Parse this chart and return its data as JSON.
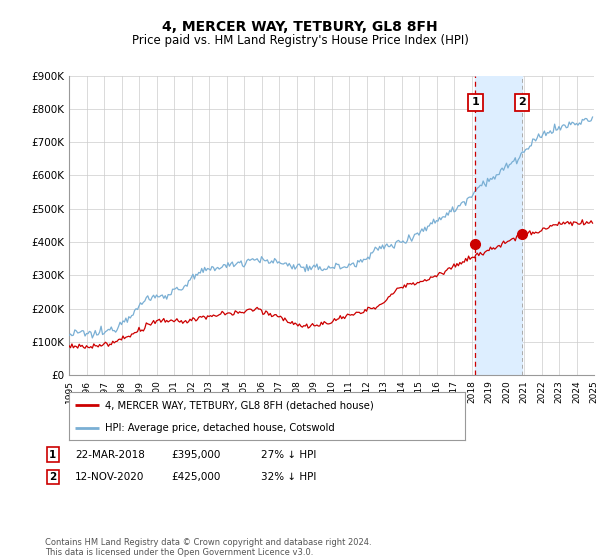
{
  "title": "4, MERCER WAY, TETBURY, GL8 8FH",
  "subtitle": "Price paid vs. HM Land Registry's House Price Index (HPI)",
  "legend_label_red": "4, MERCER WAY, TETBURY, GL8 8FH (detached house)",
  "legend_label_blue": "HPI: Average price, detached house, Cotswold",
  "sale1_label": "1",
  "sale1_date": "22-MAR-2018",
  "sale1_price": "£395,000",
  "sale1_hpi": "27% ↓ HPI",
  "sale1_year": 2018.22,
  "sale1_value": 395000,
  "sale2_label": "2",
  "sale2_date": "12-NOV-2020",
  "sale2_price": "£425,000",
  "sale2_hpi": "32% ↓ HPI",
  "sale2_year": 2020.87,
  "sale2_value": 425000,
  "xmin": 1995,
  "xmax": 2025,
  "ymin": 0,
  "ymax": 900000,
  "yticks": [
    0,
    100000,
    200000,
    300000,
    400000,
    500000,
    600000,
    700000,
    800000,
    900000
  ],
  "ytick_labels": [
    "£0",
    "£100K",
    "£200K",
    "£300K",
    "£400K",
    "£500K",
    "£600K",
    "£700K",
    "£800K",
    "£900K"
  ],
  "xticks": [
    1995,
    1996,
    1997,
    1998,
    1999,
    2000,
    2001,
    2002,
    2003,
    2004,
    2005,
    2006,
    2007,
    2008,
    2009,
    2010,
    2011,
    2012,
    2013,
    2014,
    2015,
    2016,
    2017,
    2018,
    2019,
    2020,
    2021,
    2022,
    2023,
    2024,
    2025
  ],
  "red_color": "#cc0000",
  "blue_color": "#7aafd4",
  "shade_color": "#ddeeff",
  "vline_color": "#cc0000",
  "grid_color": "#cccccc",
  "bg_color": "#ffffff",
  "title_fontsize": 10,
  "subtitle_fontsize": 8.5,
  "footer_text": "Contains HM Land Registry data © Crown copyright and database right 2024.\nThis data is licensed under the Open Government Licence v3.0."
}
